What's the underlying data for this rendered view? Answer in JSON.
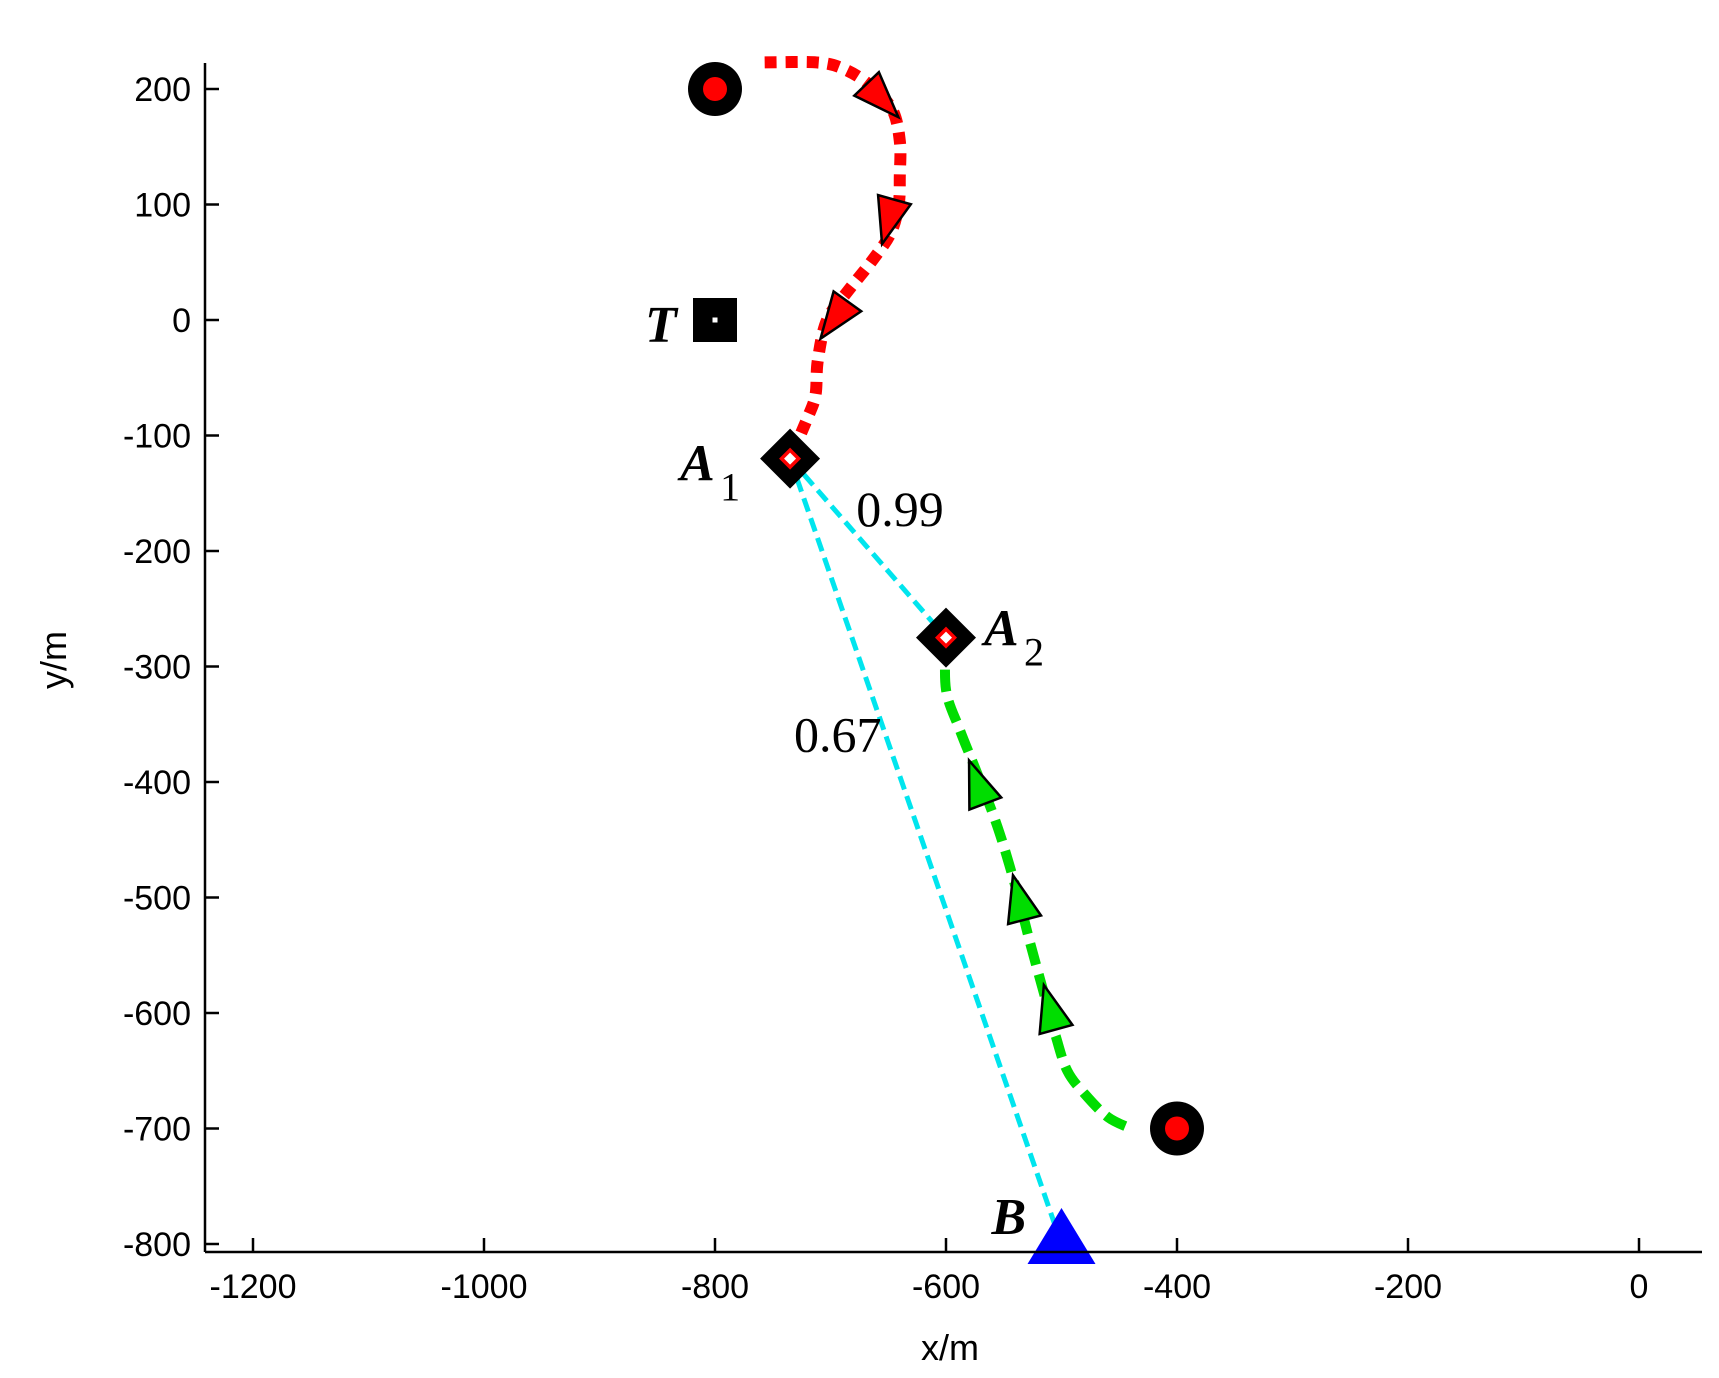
{
  "chart_data": {
    "type": "line",
    "xlabel": "x/m",
    "ylabel": "y/m",
    "xlim": [
      -1250,
      50
    ],
    "ylim": [
      -800,
      225
    ],
    "xticks": [
      -1200,
      -1000,
      -800,
      -600,
      -400,
      -200,
      0
    ],
    "yticks": [
      200,
      100,
      0,
      -100,
      -200,
      -300,
      -400,
      -500,
      -600,
      -700,
      -800
    ],
    "xtick_labels": [
      "-1200",
      "-1000",
      "-800",
      "-600",
      "-400",
      "-200",
      "0"
    ],
    "ytick_labels": [
      "200",
      "100",
      "0",
      "-100",
      "-200",
      "-300",
      "-400",
      "-500",
      "-600",
      "-700",
      "-800"
    ],
    "grid": false,
    "series": [
      {
        "color": "#ff0000",
        "style": "dotted",
        "points": [
          [
            -757,
            223
          ],
          [
            -712,
            223
          ],
          [
            -690,
            218
          ],
          [
            -668,
            205
          ],
          [
            -647,
            183
          ],
          [
            -640,
            155
          ],
          [
            -640,
            125
          ],
          [
            -641,
            100
          ],
          [
            -648,
            75
          ],
          [
            -665,
            50
          ],
          [
            -685,
            25
          ],
          [
            -703,
            0
          ],
          [
            -711,
            -35
          ],
          [
            -713,
            -65
          ],
          [
            -720,
            -85
          ],
          [
            -735,
            -120
          ]
        ],
        "arrow_points": [
          [
            -655,
            190
          ],
          [
            -650,
            85
          ],
          [
            -697,
            0
          ]
        ]
      },
      {
        "color": "#00dd00",
        "style": "dashed",
        "points": [
          [
            -600,
            -275
          ],
          [
            -600,
            -320
          ],
          [
            -588,
            -355
          ],
          [
            -572,
            -395
          ],
          [
            -555,
            -440
          ],
          [
            -540,
            -490
          ],
          [
            -527,
            -540
          ],
          [
            -516,
            -580
          ],
          [
            -505,
            -620
          ],
          [
            -495,
            -650
          ],
          [
            -480,
            -670
          ],
          [
            -460,
            -690
          ],
          [
            -440,
            -700
          ]
        ],
        "arrow_points": [
          [
            -573,
            -400
          ],
          [
            -537,
            -500
          ],
          [
            -510,
            -595
          ]
        ]
      }
    ],
    "links": [
      {
        "from": [
          -735,
          -120
        ],
        "to": [
          -600,
          -275
        ],
        "label": "0.99",
        "color": "#00e5ee"
      },
      {
        "from": [
          -735,
          -120
        ],
        "to": [
          -500,
          -800
        ],
        "label": "0.67",
        "color": "#00e5ee"
      }
    ],
    "markers": [
      {
        "name": "start-1",
        "type": "circle",
        "x": -800,
        "y": 200
      },
      {
        "name": "start-2",
        "type": "circle",
        "x": -400,
        "y": -700
      },
      {
        "name": "target",
        "type": "square",
        "x": -800,
        "y": 0,
        "label": "T",
        "label_side": "left"
      },
      {
        "name": "a1",
        "type": "diamond",
        "x": -735,
        "y": -120,
        "label": "A",
        "sub": "1",
        "label_side": "left"
      },
      {
        "name": "a2",
        "type": "diamond",
        "x": -600,
        "y": -275,
        "label": "A",
        "sub": "2",
        "label_side": "right"
      },
      {
        "name": "b",
        "type": "triangle",
        "x": -500,
        "y": -800,
        "label": "B",
        "label_side": "left"
      }
    ]
  }
}
